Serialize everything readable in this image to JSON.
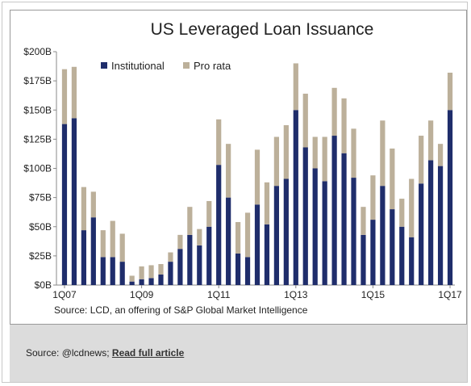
{
  "chart_data": {
    "type": "bar",
    "stacked": true,
    "title": "US Leveraged Loan Issuance",
    "source": "Source: LCD, an offering of S&P Global Market Intelligence",
    "ylim": [
      0,
      200
    ],
    "y_ticks": [
      "$0B",
      "$25B",
      "$50B",
      "$75B",
      "$100B",
      "$125B",
      "$150B",
      "$175B",
      "$200B"
    ],
    "x_tick_labels": [
      "1Q07",
      "1Q09",
      "1Q11",
      "1Q13",
      "1Q15",
      "1Q17"
    ],
    "legend_position": "top-left",
    "categories": [
      "1Q07",
      "2Q07",
      "3Q07",
      "4Q07",
      "1Q08",
      "2Q08",
      "3Q08",
      "4Q08",
      "1Q09",
      "2Q09",
      "3Q09",
      "4Q09",
      "1Q10",
      "2Q10",
      "3Q10",
      "4Q10",
      "1Q11",
      "2Q11",
      "3Q11",
      "4Q11",
      "1Q12",
      "2Q12",
      "3Q12",
      "4Q12",
      "1Q13",
      "2Q13",
      "3Q13",
      "4Q13",
      "1Q14",
      "2Q14",
      "3Q14",
      "4Q14",
      "1Q15",
      "2Q15",
      "3Q15",
      "4Q15",
      "1Q16",
      "2Q16",
      "3Q16",
      "4Q16",
      "1Q17"
    ],
    "series": [
      {
        "name": "Institutional",
        "color": "#1f2d6b",
        "values": [
          138,
          143,
          47,
          58,
          24,
          24,
          20,
          3,
          5,
          6,
          9,
          20,
          31,
          43,
          34,
          50,
          103,
          75,
          27,
          24,
          69,
          52,
          85,
          91,
          150,
          118,
          100,
          89,
          128,
          113,
          92,
          43,
          56,
          85,
          65,
          50,
          41,
          87,
          107,
          102,
          150
        ]
      },
      {
        "name": "Pro rata",
        "color": "#bcb09a",
        "values": [
          47,
          44,
          37,
          22,
          23,
          31,
          24,
          5,
          11,
          11,
          9,
          8,
          12,
          24,
          14,
          22,
          39,
          46,
          27,
          38,
          47,
          36,
          42,
          46,
          40,
          46,
          27,
          38,
          41,
          47,
          42,
          24,
          38,
          56,
          52,
          24,
          50,
          41,
          34,
          19,
          32
        ]
      }
    ]
  },
  "footer": {
    "source_prefix": "Source: @lcdnews; ",
    "link_label": "Read full article"
  }
}
